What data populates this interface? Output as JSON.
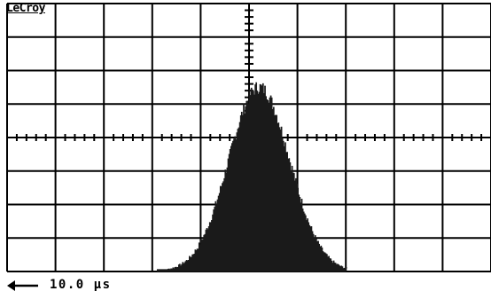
{
  "instrument": {
    "brand": "LeCroy"
  },
  "readout": {
    "timebase": "10.0 μs"
  },
  "colors": {
    "background": "#ffffff",
    "trace": "#1a1a1a",
    "grid": "#000000"
  },
  "icons": {
    "timebase_arrow": "left-arrow-icon"
  },
  "chart_data": {
    "type": "area",
    "grid": true,
    "divisions": {
      "horizontal": 10,
      "vertical": 8
    },
    "trace_shape": "gaussian histogram",
    "xlim": [
      0,
      10
    ],
    "ylim": [
      0,
      8
    ],
    "x_center": 5.2,
    "peak_height": 5.5,
    "base_start": 3.1,
    "base_end": 7.0
  }
}
